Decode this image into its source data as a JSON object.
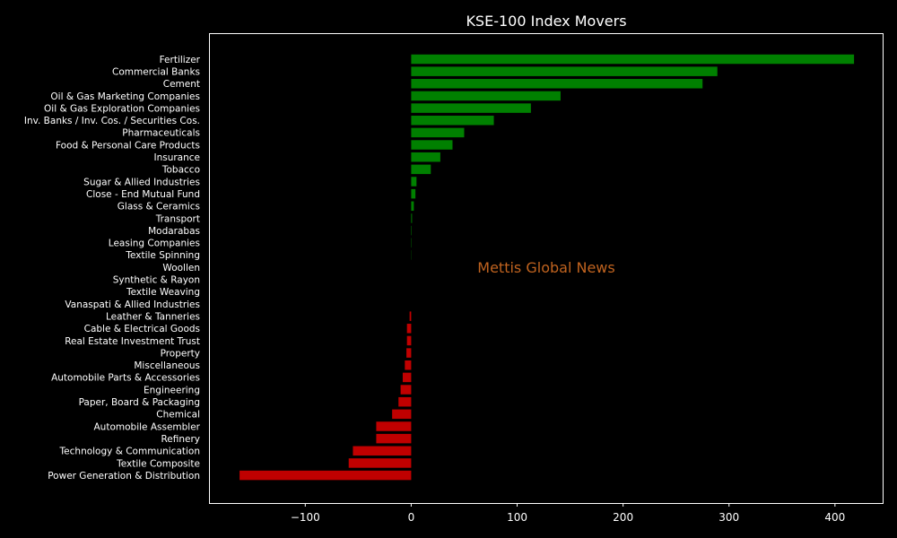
{
  "chart_data": {
    "type": "bar",
    "orientation": "horizontal",
    "title": "KSE-100 Index Movers",
    "watermark": "Mettis Global News",
    "xlabel": "",
    "ylabel": "",
    "xlim": [
      -190,
      445
    ],
    "xticks": [
      -100,
      0,
      100,
      200,
      300,
      400
    ],
    "xtick_labels": [
      "−100",
      "0",
      "100",
      "200",
      "300",
      "400"
    ],
    "grid": false,
    "colors": {
      "positive": "#008000",
      "negative": "#c00000",
      "watermark": "#c0631f",
      "background": "#000000",
      "axes": "#ffffff"
    },
    "categories": [
      "Fertilizer",
      "Commercial Banks",
      "Cement",
      "Oil & Gas Marketing Companies",
      "Oil & Gas Exploration Companies",
      "Inv. Banks / Inv. Cos. / Securities Cos.",
      "Pharmaceuticals",
      "Food & Personal Care Products",
      "Insurance",
      "Tobacco",
      "Sugar & Allied Industries",
      "Close - End Mutual Fund",
      "Glass & Ceramics",
      "Transport",
      "Modarabas",
      "Leasing Companies",
      "Textile Spinning",
      "Woollen",
      "Synthetic & Rayon",
      "Textile Weaving",
      "Vanaspati & Allied Industries",
      "Leather & Tanneries",
      "Cable & Electrical Goods",
      "Real Estate Investment Trust",
      "Property",
      "Miscellaneous",
      "Automobile Parts & Accessories",
      "Engineering",
      "Paper, Board & Packaging",
      "Chemical",
      "Automobile Assembler",
      "Refinery",
      "Technology & Communication",
      "Textile Composite",
      "Power Generation & Distribution"
    ],
    "values": [
      418,
      289,
      275,
      141,
      113,
      78,
      50,
      39,
      27.5,
      18.5,
      5,
      4,
      2.5,
      0.8,
      0.4,
      0.3,
      0.2,
      0,
      0,
      0,
      0,
      -1.5,
      -4,
      -4,
      -4.5,
      -6,
      -8,
      -10,
      -12,
      -18,
      -33,
      -33,
      -55,
      -59,
      -162
    ]
  }
}
